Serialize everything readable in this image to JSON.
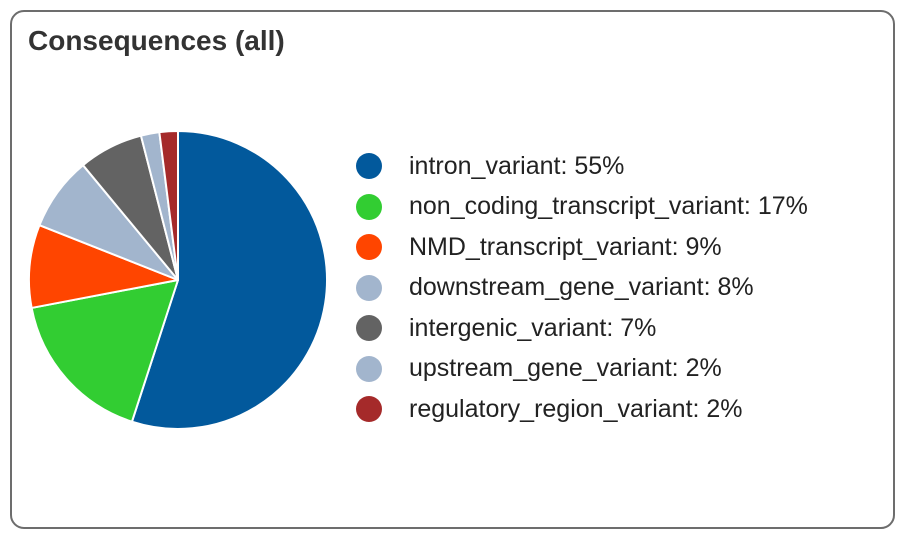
{
  "panel": {
    "title": "Consequences (all)"
  },
  "chart_data": {
    "type": "pie",
    "title": "Consequences (all)",
    "legend_position": "right",
    "slices": [
      {
        "label": "intron_variant",
        "value": 55,
        "display": "intron_variant: 55%",
        "color": "#02599c"
      },
      {
        "label": "non_coding_transcript_variant",
        "value": 17,
        "display": "non_coding_transcript_variant: 17%",
        "color": "#32cd32"
      },
      {
        "label": "NMD_transcript_variant",
        "value": 9,
        "display": "NMD_transcript_variant: 9%",
        "color": "#ff4500"
      },
      {
        "label": "downstream_gene_variant",
        "value": 8,
        "display": "downstream_gene_variant: 8%",
        "color": "#a2b5cd"
      },
      {
        "label": "intergenic_variant",
        "value": 7,
        "display": "intergenic_variant: 7%",
        "color": "#636363"
      },
      {
        "label": "upstream_gene_variant",
        "value": 2,
        "display": "upstream_gene_variant: 2%",
        "color": "#a2b5cd"
      },
      {
        "label": "regulatory_region_variant",
        "value": 2,
        "display": "regulatory_region_variant: 2%",
        "color": "#a52a2a"
      }
    ]
  }
}
